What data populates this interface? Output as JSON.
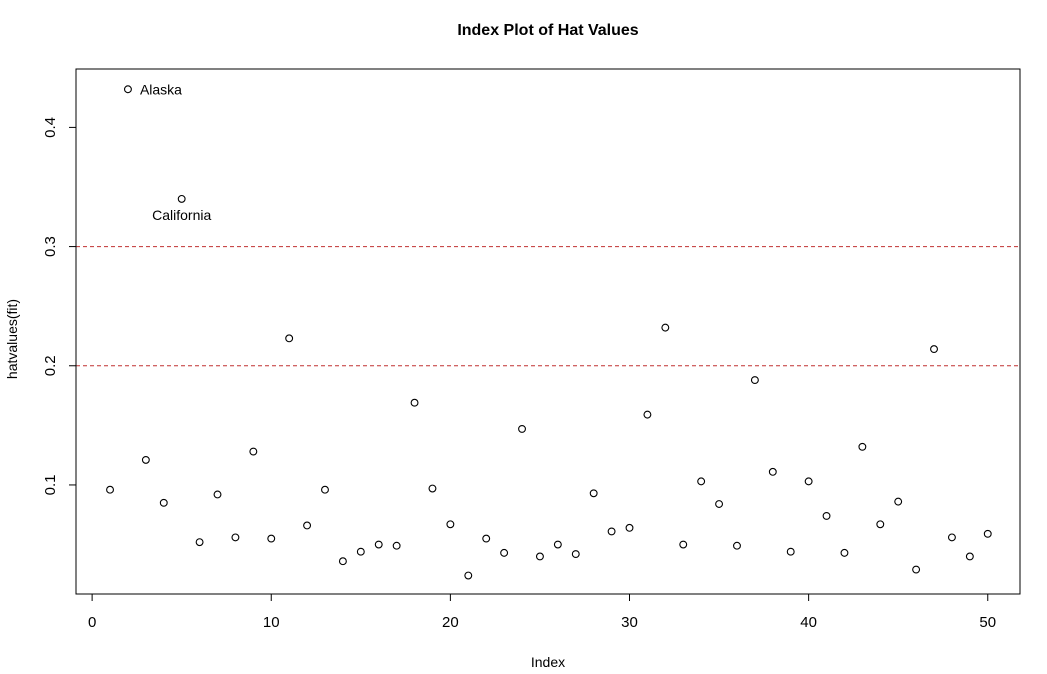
{
  "chart_data": {
    "type": "scatter",
    "title": "Index Plot of Hat Values",
    "xlabel": "Index",
    "ylabel": "hatvalues(fit)",
    "x": [
      1,
      2,
      3,
      4,
      5,
      6,
      7,
      8,
      9,
      10,
      11,
      12,
      13,
      14,
      15,
      16,
      17,
      18,
      19,
      20,
      21,
      22,
      23,
      24,
      25,
      26,
      27,
      28,
      29,
      30,
      31,
      32,
      33,
      34,
      35,
      36,
      37,
      38,
      39,
      40,
      41,
      42,
      43,
      44,
      45,
      46,
      47,
      48,
      49,
      50
    ],
    "values": [
      0.096,
      0.432,
      0.121,
      0.085,
      0.34,
      0.052,
      0.092,
      0.056,
      0.128,
      0.055,
      0.223,
      0.066,
      0.096,
      0.036,
      0.044,
      0.05,
      0.049,
      0.169,
      0.097,
      0.067,
      0.024,
      0.055,
      0.043,
      0.147,
      0.04,
      0.05,
      0.042,
      0.093,
      0.061,
      0.064,
      0.159,
      0.232,
      0.05,
      0.103,
      0.084,
      0.049,
      0.188,
      0.111,
      0.044,
      0.103,
      0.074,
      0.043,
      0.132,
      0.067,
      0.086,
      0.029,
      0.214,
      0.056,
      0.04,
      0.059
    ],
    "point_labels": [
      {
        "x": 2,
        "label": "Alaska",
        "position": "right"
      },
      {
        "x": 5,
        "label": "California",
        "position": "below"
      }
    ],
    "cutoff_lines": [
      0.2,
      0.3
    ],
    "xticks": [
      0,
      10,
      20,
      30,
      40,
      50
    ],
    "xtick_labels": [
      "0",
      "10",
      "20",
      "30",
      "40",
      "50"
    ],
    "yticks": [
      0.1,
      0.2,
      0.3,
      0.4
    ],
    "ytick_labels": [
      "0.1",
      "0.2",
      "0.3",
      "0.4"
    ],
    "xlim": [
      -0.9,
      51.8
    ],
    "ylim": [
      0.0085,
      0.449
    ],
    "grid": false,
    "legend": "none",
    "marker": "open-circle",
    "colors": {
      "point_stroke": "#000000",
      "cutoff_line": "#c03030",
      "axis": "#000000",
      "background": "#ffffff"
    }
  }
}
